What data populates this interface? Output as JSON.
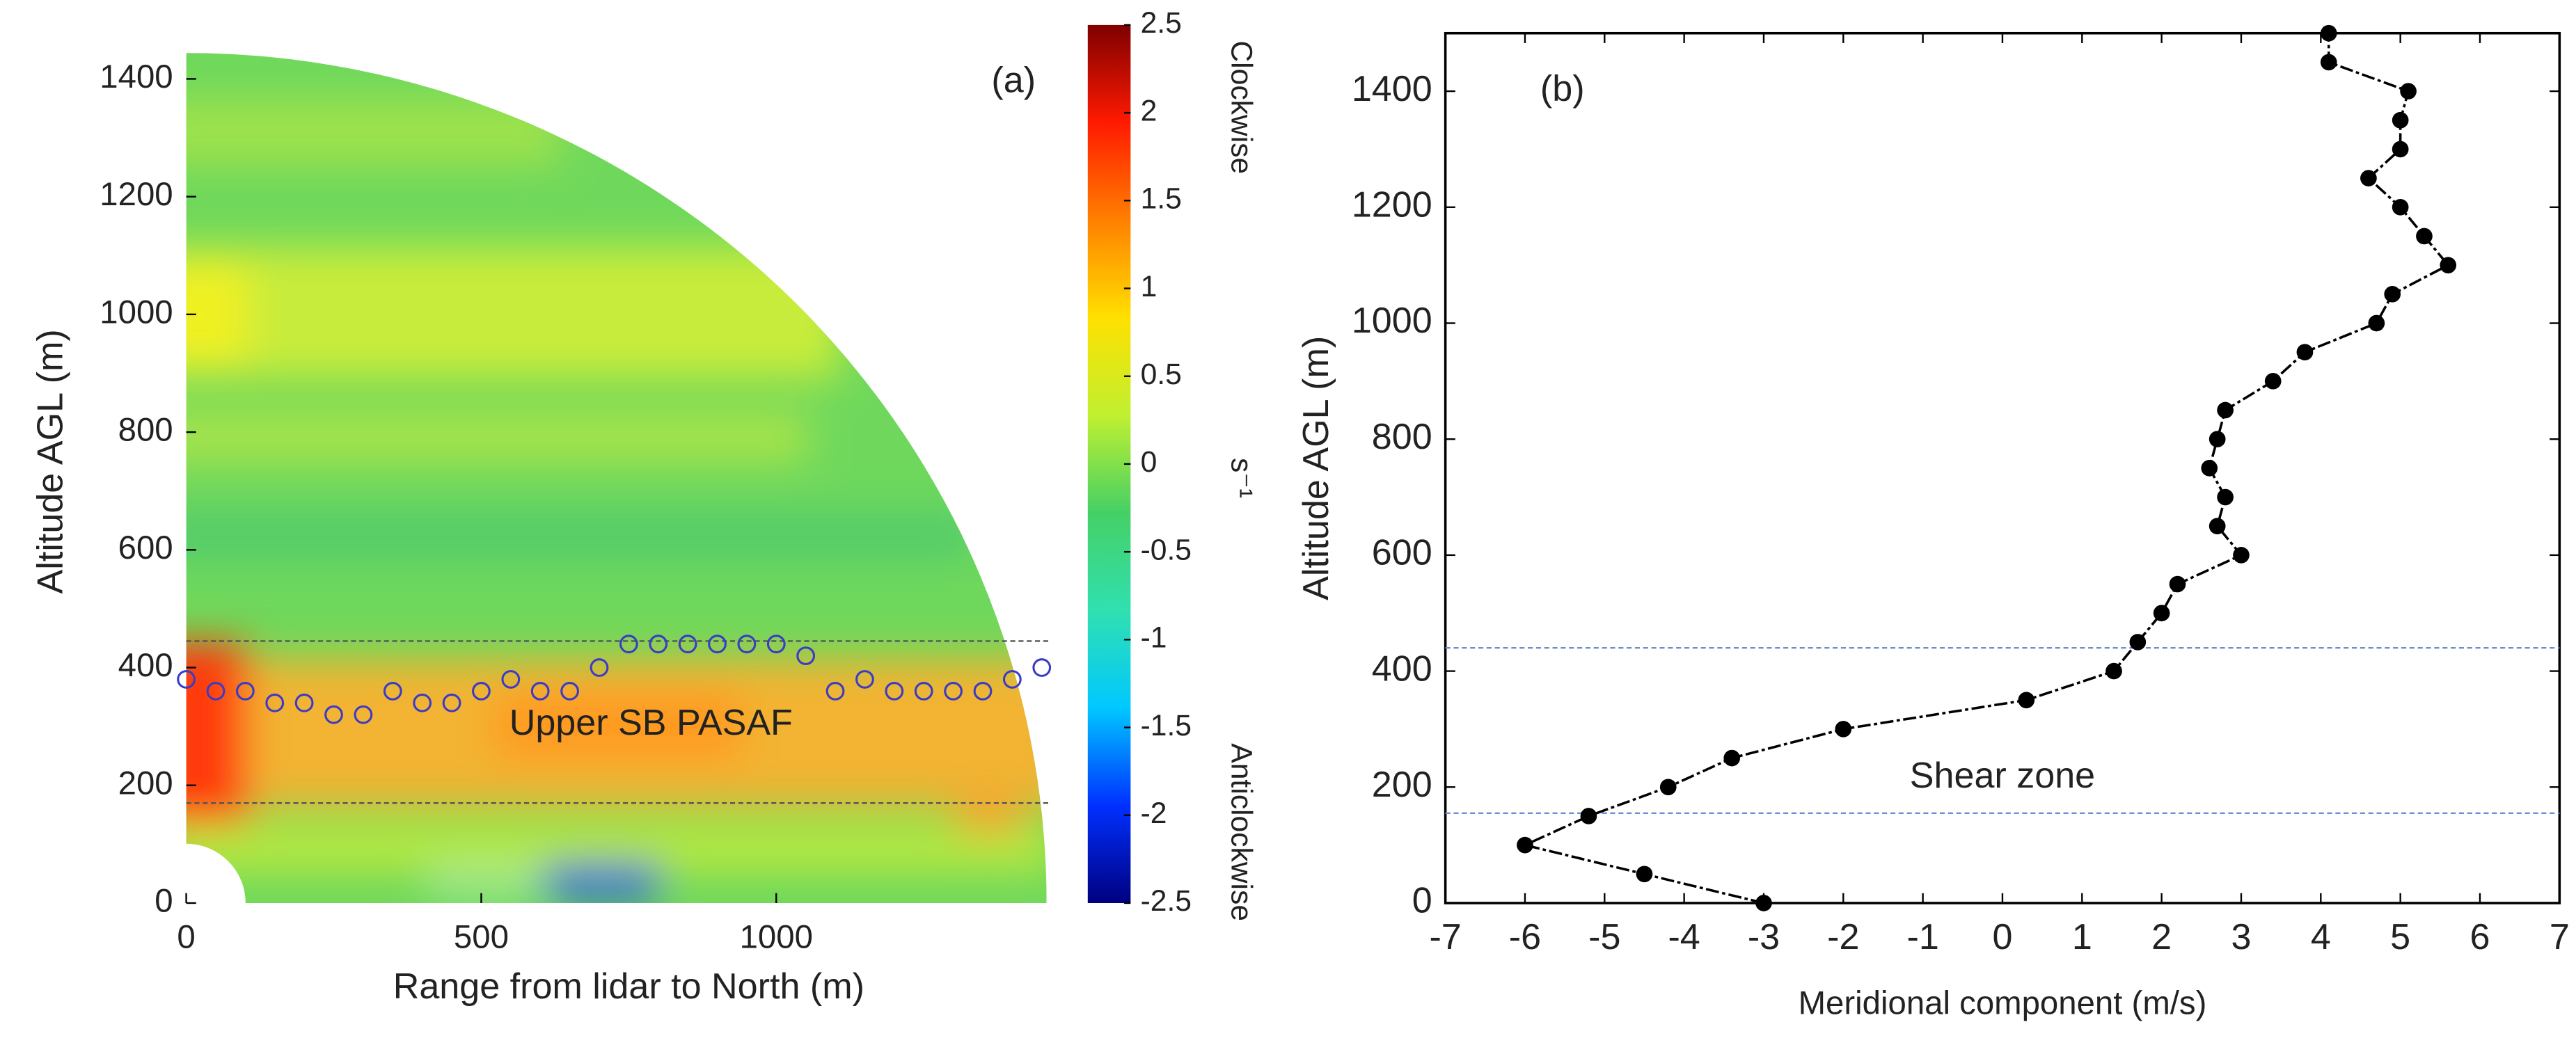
{
  "chart_data": [
    {
      "type": "scatter",
      "x_label": "Range from lidar to North (m)",
      "y_label": "Altitude AGL (m)",
      "annotations": [
        "(a)",
        "Upper SB PASAF"
      ],
      "xlim": [
        0,
        1500
      ],
      "xticks": [
        0,
        500,
        1000
      ],
      "ylim": [
        0,
        1500
      ],
      "yticks": [
        0,
        200,
        400,
        600,
        800,
        1000,
        1200,
        1400
      ],
      "hlines": [
        445,
        170
      ],
      "series": [
        {
          "color": "#3b3bc8",
          "x": [
            0,
            50,
            100,
            150,
            200,
            250,
            300,
            350,
            400,
            450,
            500,
            550,
            600,
            650,
            700,
            750,
            800,
            850,
            900,
            950,
            1000,
            1050,
            1100,
            1150,
            1200,
            1250,
            1300,
            1350,
            1400,
            1450
          ],
          "values": [
            380,
            360,
            360,
            340,
            340,
            320,
            320,
            360,
            340,
            340,
            360,
            380,
            360,
            360,
            400,
            440,
            440,
            440,
            440,
            440,
            440,
            420,
            360,
            380,
            360,
            360,
            360,
            360,
            380,
            400
          ]
        }
      ],
      "colorbar": {
        "lim": [
          -2.5,
          2.5
        ],
        "ticks": [
          2.5,
          2,
          1.5,
          1,
          0.5,
          0,
          -0.5,
          -1,
          -1.5,
          -2,
          -2.5
        ],
        "top_label": "Clockwise",
        "bottom_label": "Anticlockwise",
        "unit": "s⁻¹",
        "colors": [
          "#00007f",
          "#0030ff",
          "#00c8ff",
          "#30e0b0",
          "#45d065",
          "#c0f030",
          "#ffe000",
          "#ff8000",
          "#ff1a00",
          "#7f0000"
        ]
      }
    },
    {
      "type": "line",
      "x_label": "Meridional component (m/s)",
      "y_label": "Altitude AGL (m)",
      "annotations": [
        "(b)",
        "Shear zone"
      ],
      "xlim": [
        -7,
        7
      ],
      "xticks": [
        -7,
        -6,
        -5,
        -4,
        -3,
        -2,
        -1,
        0,
        1,
        2,
        3,
        4,
        5,
        6,
        7
      ],
      "ylim": [
        0,
        1500
      ],
      "yticks": [
        0,
        200,
        400,
        600,
        800,
        1000,
        1200,
        1400
      ],
      "hlines": [
        440,
        155
      ],
      "series": [
        {
          "color": "#000000",
          "x": [
            -3.0,
            -4.5,
            -6.0,
            -5.2,
            -4.2,
            -3.4,
            -2.0,
            0.3,
            1.4,
            1.7,
            2.0,
            2.2,
            3.0,
            2.7,
            2.8,
            2.6,
            2.7,
            2.8,
            3.4,
            3.8,
            4.7,
            4.9,
            5.6,
            5.3,
            5.0,
            4.6,
            5.0,
            5.0,
            5.1,
            4.1,
            4.1
          ],
          "values": [
            0,
            50,
            100,
            150,
            200,
            250,
            300,
            350,
            400,
            450,
            500,
            550,
            600,
            650,
            700,
            750,
            800,
            850,
            900,
            950,
            1000,
            1050,
            1100,
            1150,
            1200,
            1250,
            1300,
            1350,
            1400,
            1450,
            1500
          ]
        }
      ]
    }
  ]
}
